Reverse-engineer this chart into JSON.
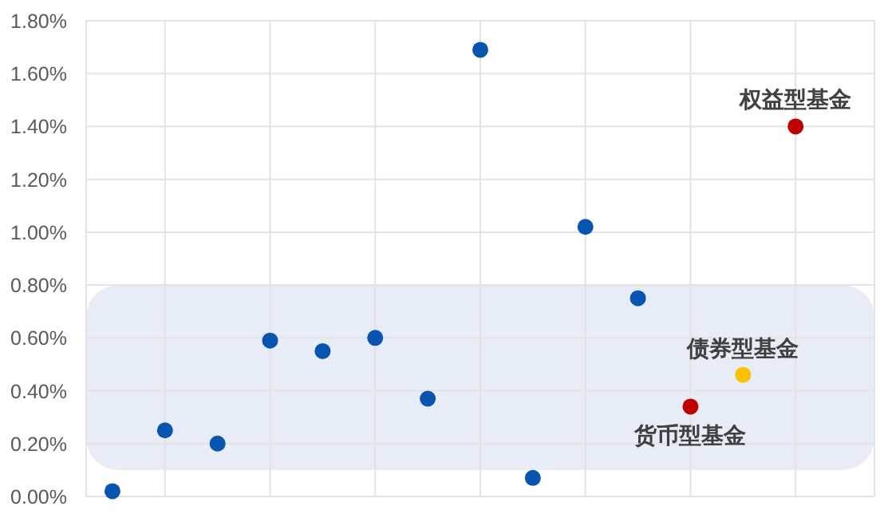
{
  "chart_data": {
    "type": "scatter",
    "categories": [
      null,
      null,
      null,
      null,
      null,
      null,
      null,
      null,
      null,
      null,
      null,
      null,
      null,
      null,
      null
    ],
    "ylim": [
      0,
      1.8
    ],
    "yticks": [
      {
        "value": 0,
        "label": "0.00%"
      },
      {
        "value": 0.2,
        "label": "0.20%"
      },
      {
        "value": 0.4,
        "label": "0.40%"
      },
      {
        "value": 0.6,
        "label": "0.60%"
      },
      {
        "value": 0.8,
        "label": "0.80%"
      },
      {
        "value": 1.0,
        "label": "1.00%"
      },
      {
        "value": 1.2,
        "label": "1.20%"
      },
      {
        "value": 1.4,
        "label": "1.40%"
      },
      {
        "value": 1.6,
        "label": "1.60%"
      },
      {
        "value": 1.8,
        "label": "1.80%"
      }
    ],
    "grid": true,
    "marker": "circle",
    "series": [
      {
        "color": "#0755b0",
        "values": [
          0.02,
          0.25,
          0.2,
          0.59,
          0.55,
          0.6,
          0.37,
          1.69,
          0.07,
          1.02,
          0.75,
          null,
          null,
          null,
          null
        ]
      },
      {
        "color": "#c00000",
        "values": [
          null,
          null,
          null,
          null,
          null,
          null,
          null,
          null,
          null,
          null,
          null,
          0.34,
          null,
          1.4,
          null
        ]
      },
      {
        "color": "#ffc000",
        "values": [
          null,
          null,
          null,
          null,
          null,
          null,
          null,
          null,
          null,
          null,
          null,
          null,
          0.46,
          null,
          null
        ]
      }
    ],
    "bands": [
      {
        "axis": "y",
        "from": 0.1,
        "to": 0.8,
        "color": "#e7ecf6"
      }
    ],
    "annotations": [
      {
        "text": "权益型基金",
        "y": 1.4
      },
      {
        "text": "债券型基金",
        "y": 0.46
      },
      {
        "text": "货币型基金",
        "y": 0.34
      }
    ]
  }
}
